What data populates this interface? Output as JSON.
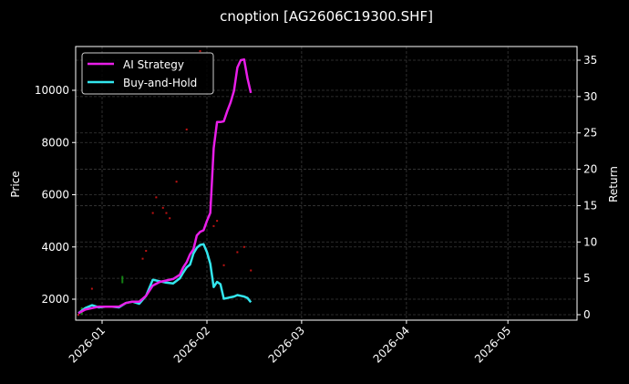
{
  "chart_data": {
    "type": "line",
    "title": "cnoption [AG2606C19300.SHF]",
    "xlabel": "",
    "ylabel": "Price",
    "ylabel_right": "Return",
    "x_tick_labels": [
      "2026-01",
      "2026-02",
      "2026-03",
      "2026-04",
      "2026-05"
    ],
    "y_ticks_left": [
      2000,
      4000,
      6000,
      8000,
      10000
    ],
    "y_ticks_right": [
      0,
      5,
      10,
      15,
      20,
      25,
      30,
      35
    ],
    "ylim_left": [
      1200,
      11700
    ],
    "ylim_right": [
      -0.8,
      36.9
    ],
    "xlim_days": [
      -7,
      142
    ],
    "grid": true,
    "legend_position": "upper left",
    "colors": {
      "background": "#000000",
      "ai_strategy": "#e81ee8",
      "buy_and_hold": "#33e6ee",
      "candle_up": "#ff1a1a",
      "candle_down": "#1aaa1a",
      "grid": "#3a3a3a",
      "axes": "#ffffff"
    },
    "series": [
      {
        "name": "AI Strategy",
        "axis": "right",
        "x_days": [
          -7,
          -5,
          -3,
          -1,
          1,
          3,
          5,
          7,
          9,
          11,
          13,
          15,
          17,
          19,
          21,
          23,
          24,
          25,
          26,
          27,
          28,
          29,
          30,
          31,
          32,
          33,
          34,
          35,
          36,
          37,
          38,
          39,
          40,
          41,
          42,
          43,
          44
        ],
        "values": [
          0.2,
          0.7,
          0.9,
          1.1,
          1.1,
          1.1,
          1.1,
          1.6,
          1.8,
          1.8,
          2.6,
          4.0,
          4.5,
          4.7,
          4.9,
          5.5,
          6.5,
          7.2,
          8.3,
          9.0,
          10.9,
          11.4,
          11.6,
          12.9,
          14.0,
          22.9,
          26.5,
          26.5,
          26.6,
          28.0,
          29.2,
          30.8,
          34.0,
          35.0,
          35.1,
          32.5,
          30.5
        ]
      },
      {
        "name": "Buy-and-Hold",
        "axis": "right",
        "x_days": [
          -7,
          -5,
          -3,
          -1,
          1,
          3,
          5,
          7,
          9,
          11,
          13,
          15,
          17,
          19,
          21,
          23,
          24,
          25,
          26,
          27,
          28,
          29,
          30,
          31,
          32,
          33,
          34,
          35,
          36,
          37,
          38,
          39,
          40,
          41,
          42,
          43,
          44
        ],
        "values": [
          0.2,
          0.9,
          1.3,
          1.0,
          1.1,
          1.1,
          1.0,
          1.6,
          1.8,
          1.5,
          2.6,
          4.8,
          4.6,
          4.4,
          4.3,
          5.0,
          5.8,
          6.5,
          6.9,
          8.4,
          9.2,
          9.6,
          9.7,
          8.6,
          7.0,
          3.8,
          4.5,
          4.2,
          2.2,
          2.3,
          2.4,
          2.5,
          2.7,
          2.6,
          2.5,
          2.3,
          1.7
        ]
      }
    ],
    "price_markers": {
      "description": "faint candlestick/price marks on left Price axis",
      "points": [
        {
          "x_day": -7,
          "price": 1400,
          "color": "red"
        },
        {
          "x_day": -6,
          "price": 1550,
          "color": "green"
        },
        {
          "x_day": -5,
          "price": 1650,
          "color": "red"
        },
        {
          "x_day": -3,
          "price": 2400,
          "color": "red"
        },
        {
          "x_day": 6,
          "price": 2750,
          "color": "green"
        },
        {
          "x_day": 12,
          "price": 3550,
          "color": "red"
        },
        {
          "x_day": 13,
          "price": 3850,
          "color": "red"
        },
        {
          "x_day": 15,
          "price": 5300,
          "color": "red"
        },
        {
          "x_day": 16,
          "price": 5900,
          "color": "red"
        },
        {
          "x_day": 18,
          "price": 5500,
          "color": "red"
        },
        {
          "x_day": 19,
          "price": 5300,
          "color": "red"
        },
        {
          "x_day": 20,
          "price": 5100,
          "color": "red"
        },
        {
          "x_day": 22,
          "price": 6500,
          "color": "red"
        },
        {
          "x_day": 25,
          "price": 8500,
          "color": "red"
        },
        {
          "x_day": 29,
          "price": 11500,
          "color": "red"
        },
        {
          "x_day": 32,
          "price": 5700,
          "color": "red"
        },
        {
          "x_day": 33,
          "price": 4800,
          "color": "red"
        },
        {
          "x_day": 34,
          "price": 5000,
          "color": "red"
        },
        {
          "x_day": 36,
          "price": 3300,
          "color": "red"
        },
        {
          "x_day": 40,
          "price": 3800,
          "color": "red"
        },
        {
          "x_day": 42,
          "price": 4000,
          "color": "red"
        },
        {
          "x_day": 44,
          "price": 3100,
          "color": "red"
        }
      ]
    }
  },
  "legend": {
    "items": [
      {
        "label": "AI Strategy",
        "color": "#e81ee8"
      },
      {
        "label": "Buy-and-Hold",
        "color": "#33e6ee"
      }
    ]
  }
}
